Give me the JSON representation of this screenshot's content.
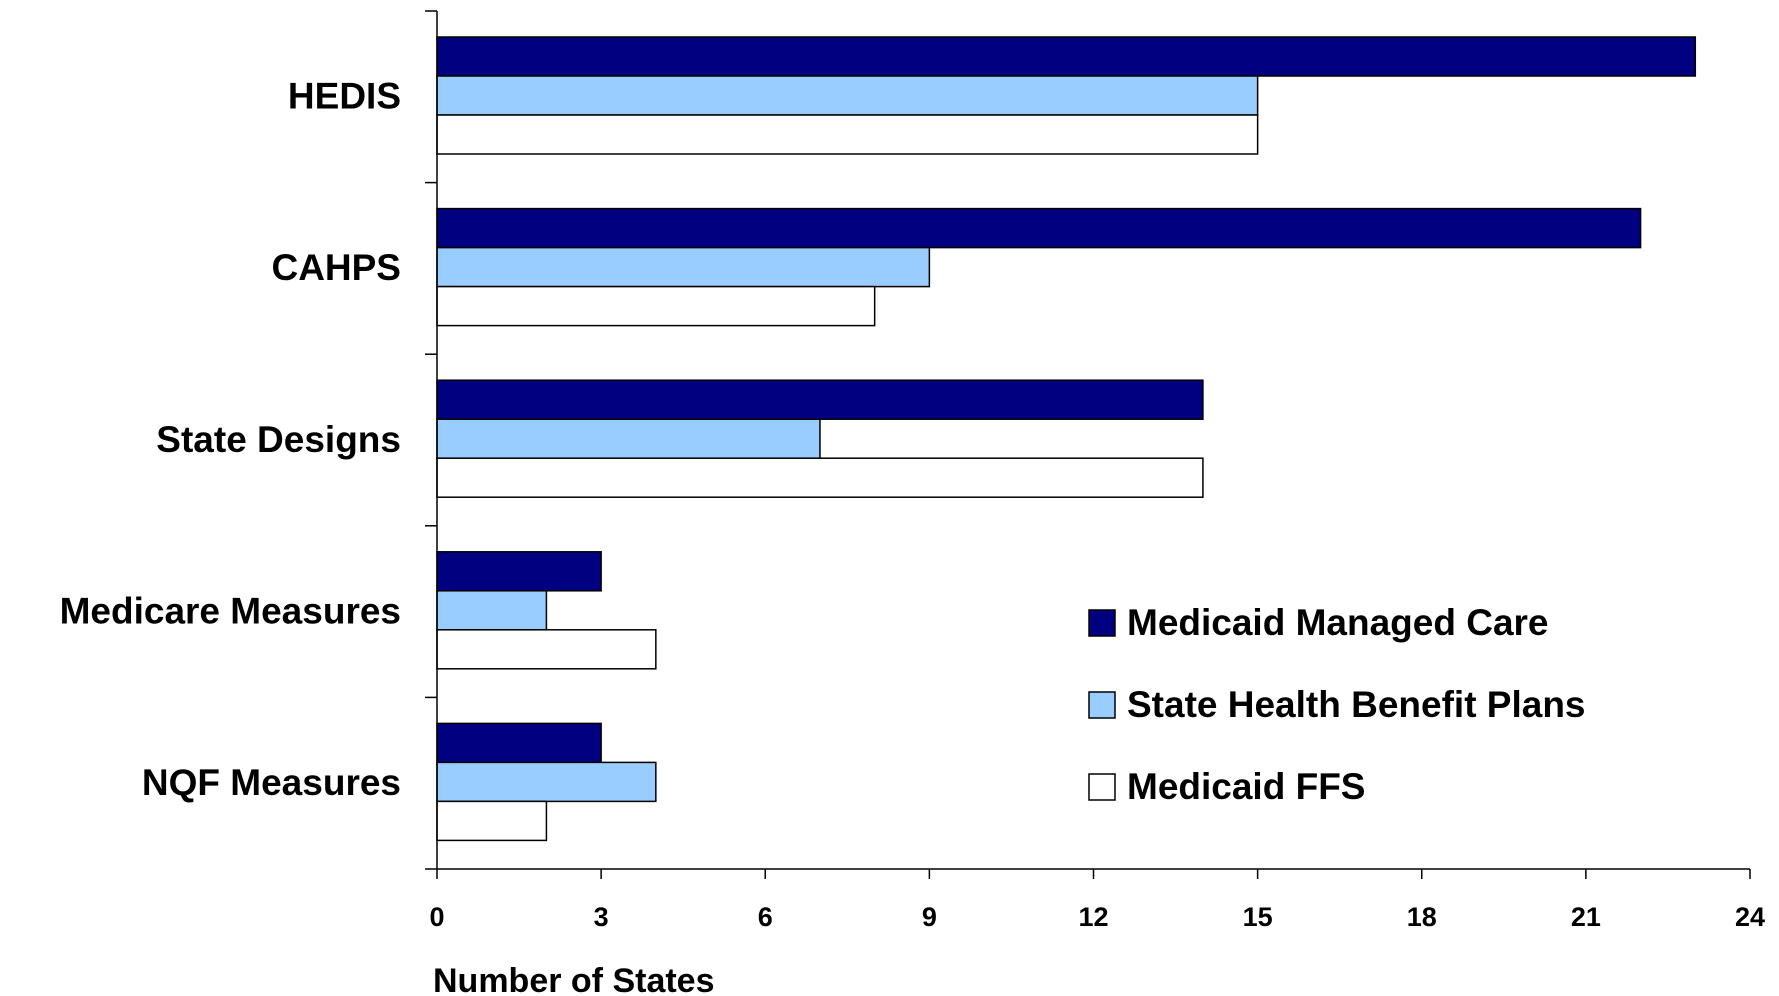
{
  "chart_data": {
    "type": "bar",
    "orientation": "horizontal",
    "categories": [
      "HEDIS",
      "CAHPS",
      "State Designs",
      "Medicare Measures",
      "NQF Measures"
    ],
    "series": [
      {
        "name": "Medicaid Managed Care",
        "color": "#000080",
        "values": [
          23,
          22,
          14,
          3,
          3
        ]
      },
      {
        "name": "State Health Benefit Plans",
        "color": "#99ccff",
        "values": [
          15,
          9,
          7,
          2,
          4
        ]
      },
      {
        "name": "Medicaid FFS",
        "color": "#ffffff",
        "values": [
          15,
          8,
          14,
          4,
          2
        ]
      }
    ],
    "x_label": "Number of States",
    "xlim": [
      0,
      24
    ],
    "xticks": [
      0,
      3,
      6,
      9,
      12,
      15,
      18,
      21,
      24
    ],
    "grid": false,
    "legend": "lower right"
  }
}
